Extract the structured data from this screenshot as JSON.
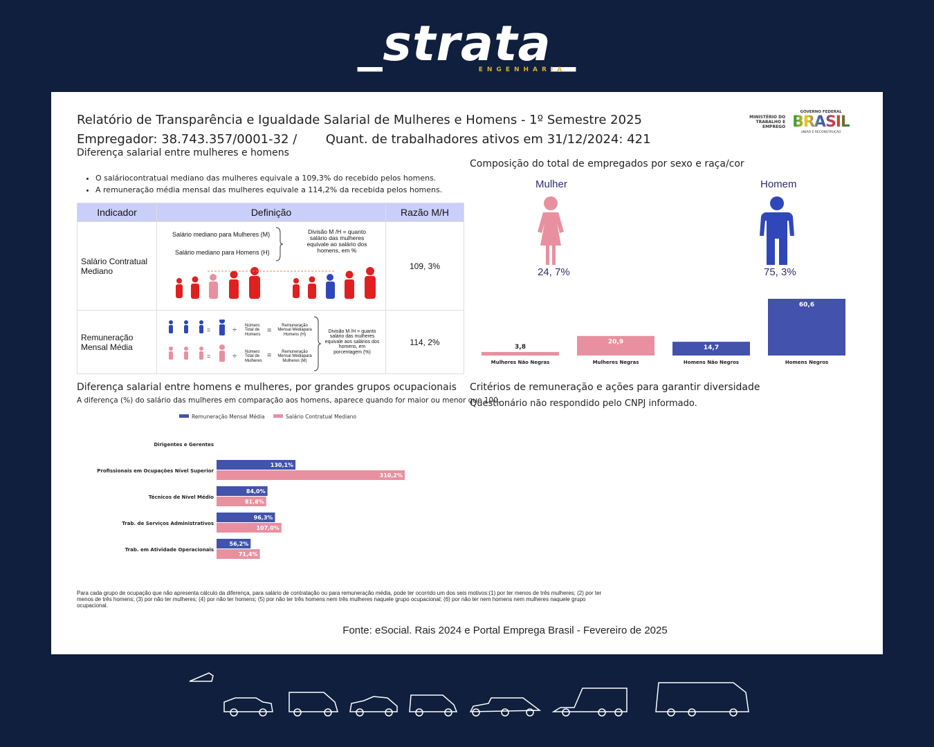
{
  "brand": {
    "name": "_strata_",
    "sub": "ENGENHARIA",
    "gold": "#d8b13a",
    "bg": "#0f1f3d"
  },
  "header": {
    "title": "Relatório de Transparência e Igualdade Salarial de Mulheres e Homens - 1º Semestre 2025",
    "employer": "Empregador: 38.743.357/0001-32 /",
    "workers": "Quant. de trabalhadores ativos em 31/12/2024: 421"
  },
  "gov": {
    "ministry": "MINISTÉRIO DO TRABALHO E EMPREGO",
    "federal": "GOVERNO FEDERAL",
    "brasil": "BRASIL",
    "motto": "UNIÃO E RECONSTRUÇÃO"
  },
  "salary_diff": {
    "title": "Diferença salarial entre mulheres e homens",
    "bullets": [
      "O saláriocontratual mediano das mulheres equivale a 109,3% do recebido pelos homens.",
      "A remuneração média mensal das mulheres equivale a 114,2% da recebida pelos homens."
    ]
  },
  "table": {
    "headers": [
      "Indicador",
      "Definição",
      "Razão M/H"
    ],
    "rows": [
      {
        "indicator": "Salário Contratual Mediano",
        "def1": "Salário mediano para Mulheres (M)",
        "def2": "Salário mediano para Homens (H)",
        "note": "Divisão M /H = quanto salário das mulheres equivale ao salário dos homens, em %",
        "ratio": "109, 3%"
      },
      {
        "indicator": "Remuneração Mensal Média",
        "num_label": "Número Total de Homens",
        "num_label2": "Número Total de Mulheres",
        "rem1": "Remuneração Mensal Médiapara Homens (H)",
        "rem2": "Remuneração Mensal Médiapara Mulheres (M)",
        "note": "Divisão M /H = quanto salário das mulheres equivale aos salários dos homens, em porcentagem (%)",
        "ratio": "114, 2%"
      }
    ]
  },
  "composition": {
    "title": "Composição do total de empregados por sexo e raça/cor",
    "female_label": "Mulher",
    "male_label": "Homem",
    "female_pct": "24, 7%",
    "male_pct": "75, 3%",
    "female_color": "#e8909f",
    "male_color": "#2f47b8"
  },
  "chart_data": [
    {
      "type": "bar",
      "categories": [
        "Mulheres Não Negras",
        "Mulheres Negras",
        "Homens Não Negros",
        "Homens Negros"
      ],
      "values": [
        3.8,
        20.9,
        14.7,
        60.6
      ],
      "value_labels": [
        "3,8",
        "20,9",
        "14,7",
        "60,6"
      ],
      "colors": [
        "#e8909f",
        "#e8909f",
        "#4252ad",
        "#4252ad"
      ]
    },
    {
      "type": "bar",
      "orientation": "horizontal",
      "categories": [
        "Dirigentes e Gerentes",
        "Profissionais em Ocupações Nível Superior",
        "Técnicos de Nível Médio",
        "Trab. de Serviços Administrativos",
        "Trab. em Atividade Operacionais"
      ],
      "series": [
        {
          "name": "Remuneração Mensal Média",
          "values": [
            null,
            130.1,
            84.0,
            96.3,
            56.2
          ],
          "labels": [
            "",
            "130,1%",
            "84,0%",
            "96,3%",
            "56,2%"
          ],
          "color": "#4252ad"
        },
        {
          "name": "Salário Contratual Mediano",
          "values": [
            null,
            310.2,
            81.8,
            107.0,
            71.4
          ],
          "labels": [
            "",
            "310,2%",
            "81,8%",
            "107,0%",
            "71,4%"
          ],
          "color": "#e8909f"
        }
      ]
    }
  ],
  "occupations": {
    "title": "Diferença salarial entre homens e mulheres, por grandes grupos ocupacionais",
    "subtitle": "A diferença (%) do salário das mulheres em comparação aos homens, aparece quando for maior ou menor que 100."
  },
  "criteria": {
    "title": "Critérios de remuneração e ações para garantir diversidade",
    "text": "Questionário não respondido pelo CNPJ informado."
  },
  "footnote": "Para cada grupo de ocupação que não apresenta cálculo da diferença, para salário de contratação ou para remuneração média, pode ter ocorrido um dos seis motivos:(1) por ter menos de três mulheres; (2) por ter menos de três homens; (3) por não ter mulheres; (4) por não ter homens; (5) por não ter três homens nem três mulheres naquele grupo ocupacional; (6) por não ter nem homens nem mulheres naquele grupo ocupacional.",
  "source": "Fonte: eSocial. Rais 2024 e Portal Emprega Brasil - Fevereiro de 2025"
}
